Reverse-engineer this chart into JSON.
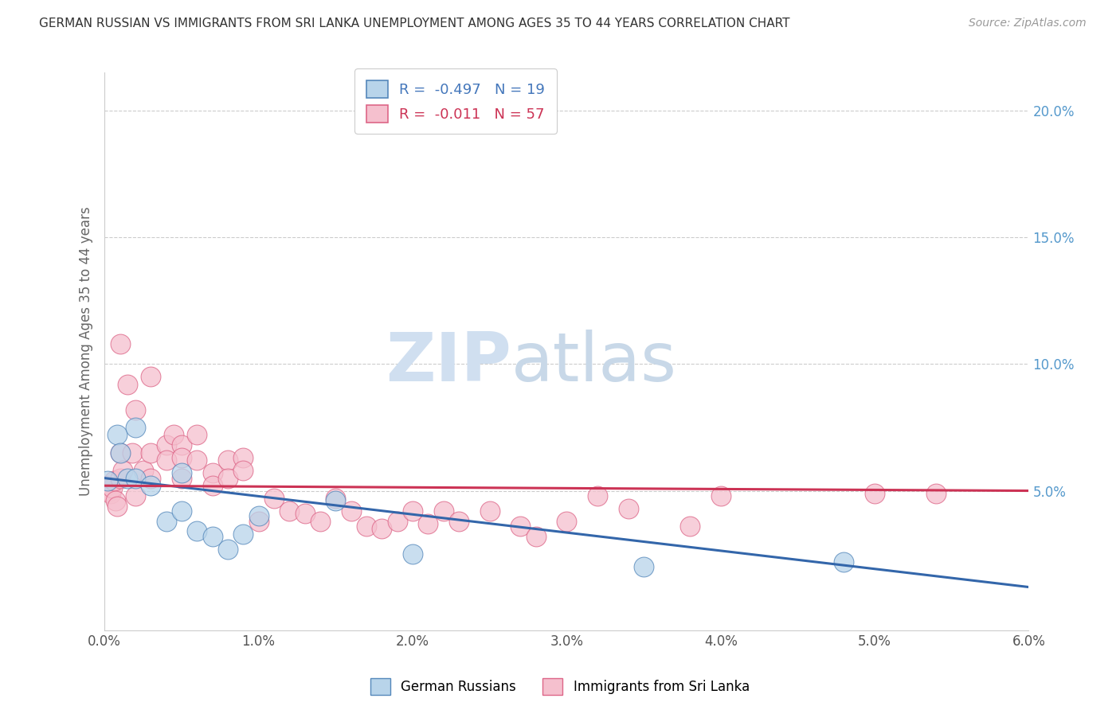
{
  "title": "GERMAN RUSSIAN VS IMMIGRANTS FROM SRI LANKA UNEMPLOYMENT AMONG AGES 35 TO 44 YEARS CORRELATION CHART",
  "source": "Source: ZipAtlas.com",
  "xlabel": "",
  "ylabel": "Unemployment Among Ages 35 to 44 years",
  "xlim": [
    0.0,
    0.06
  ],
  "ylim": [
    -0.005,
    0.215
  ],
  "xticks": [
    0.0,
    0.01,
    0.02,
    0.03,
    0.04,
    0.05,
    0.06
  ],
  "xticklabels": [
    "0.0%",
    "1.0%",
    "2.0%",
    "3.0%",
    "4.0%",
    "5.0%",
    "6.0%"
  ],
  "yticks_right": [
    0.05,
    0.1,
    0.15,
    0.2
  ],
  "ytick_right_labels": [
    "5.0%",
    "10.0%",
    "15.0%",
    "20.0%"
  ],
  "blue_color": "#b8d4ea",
  "blue_edge_color": "#5588bb",
  "pink_color": "#f5c0ce",
  "pink_edge_color": "#dd6688",
  "blue_line_color": "#3366aa",
  "pink_line_color": "#cc3355",
  "legend_R_blue": "R =  -0.497",
  "legend_N_blue": "N = 19",
  "legend_R_pink": "R =  -0.011",
  "legend_N_pink": "N = 57",
  "legend_label_blue": "German Russians",
  "legend_label_pink": "Immigrants from Sri Lanka",
  "watermark_zip": "ZIP",
  "watermark_atlas": "atlas",
  "blue_x": [
    0.0002,
    0.0008,
    0.001,
    0.0015,
    0.002,
    0.002,
    0.003,
    0.004,
    0.005,
    0.005,
    0.006,
    0.007,
    0.008,
    0.009,
    0.01,
    0.015,
    0.02,
    0.035,
    0.048
  ],
  "blue_y": [
    0.054,
    0.072,
    0.065,
    0.055,
    0.075,
    0.055,
    0.052,
    0.038,
    0.057,
    0.042,
    0.034,
    0.032,
    0.027,
    0.033,
    0.04,
    0.046,
    0.025,
    0.02,
    0.022
  ],
  "pink_x": [
    0.0002,
    0.0003,
    0.0004,
    0.0005,
    0.0006,
    0.0007,
    0.0008,
    0.001,
    0.001,
    0.001,
    0.0012,
    0.0015,
    0.0018,
    0.002,
    0.002,
    0.0025,
    0.003,
    0.003,
    0.003,
    0.004,
    0.004,
    0.0045,
    0.005,
    0.005,
    0.005,
    0.006,
    0.006,
    0.007,
    0.007,
    0.008,
    0.008,
    0.009,
    0.009,
    0.01,
    0.011,
    0.012,
    0.013,
    0.014,
    0.015,
    0.016,
    0.017,
    0.018,
    0.019,
    0.02,
    0.021,
    0.022,
    0.023,
    0.025,
    0.027,
    0.028,
    0.03,
    0.032,
    0.034,
    0.038,
    0.04,
    0.05,
    0.054
  ],
  "pink_y": [
    0.052,
    0.05,
    0.049,
    0.051,
    0.054,
    0.046,
    0.044,
    0.108,
    0.055,
    0.065,
    0.058,
    0.092,
    0.065,
    0.082,
    0.048,
    0.058,
    0.095,
    0.065,
    0.055,
    0.068,
    0.062,
    0.072,
    0.068,
    0.063,
    0.055,
    0.072,
    0.062,
    0.057,
    0.052,
    0.062,
    0.055,
    0.063,
    0.058,
    0.038,
    0.047,
    0.042,
    0.041,
    0.038,
    0.047,
    0.042,
    0.036,
    0.035,
    0.038,
    0.042,
    0.037,
    0.042,
    0.038,
    0.042,
    0.036,
    0.032,
    0.038,
    0.048,
    0.043,
    0.036,
    0.048,
    0.049,
    0.049
  ]
}
